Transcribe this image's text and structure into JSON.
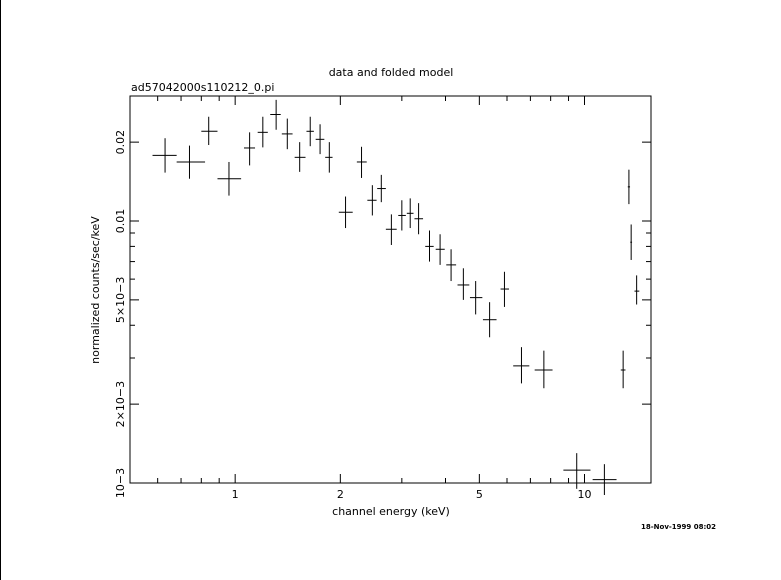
{
  "chart_data": {
    "type": "scatter",
    "title": "data and folded model",
    "subtitle": "ad57042000s110212_0.pi",
    "xlabel": "channel energy (keV)",
    "ylabel": "normalized counts/sec/keV",
    "x_scale": "log",
    "y_scale": "log",
    "xlim": [
      0.5,
      15.5
    ],
    "ylim": [
      0.001,
      0.03
    ],
    "x_ticks": [
      1,
      2,
      5,
      10
    ],
    "x_tick_labels": [
      "1",
      "2",
      "5",
      "10"
    ],
    "y_ticks": [
      0.001,
      0.002,
      0.005,
      0.01,
      0.02
    ],
    "y_tick_labels": [
      "10−3",
      "2×10−3",
      "5×10−3",
      "0.01",
      "0.02"
    ],
    "timestamp": "18-Nov-1999 08:02",
    "series": [
      {
        "points": [
          {
            "x": 0.63,
            "xerr": [
              0.58,
              0.68
            ],
            "y": 0.0178,
            "yerr": [
              0.0153,
              0.0207
            ]
          },
          {
            "x": 0.74,
            "xerr": [
              0.68,
              0.82
            ],
            "y": 0.0168,
            "yerr": [
              0.0145,
              0.0194
            ]
          },
          {
            "x": 0.84,
            "xerr": [
              0.8,
              0.89
            ],
            "y": 0.022,
            "yerr": [
              0.0195,
              0.025
            ]
          },
          {
            "x": 0.96,
            "xerr": [
              0.89,
              1.04
            ],
            "y": 0.0145,
            "yerr": [
              0.0125,
              0.0168
            ]
          },
          {
            "x": 1.1,
            "xerr": [
              1.06,
              1.14
            ],
            "y": 0.019,
            "yerr": [
              0.0163,
              0.0218
            ]
          },
          {
            "x": 1.2,
            "xerr": [
              1.16,
              1.24
            ],
            "y": 0.0218,
            "yerr": [
              0.0191,
              0.025
            ]
          },
          {
            "x": 1.31,
            "xerr": [
              1.26,
              1.35
            ],
            "y": 0.0255,
            "yerr": [
              0.0223,
              0.029
            ]
          },
          {
            "x": 1.41,
            "xerr": [
              1.36,
              1.46
            ],
            "y": 0.0215,
            "yerr": [
              0.0188,
              0.0246
            ]
          },
          {
            "x": 1.53,
            "xerr": [
              1.48,
              1.59
            ],
            "y": 0.0175,
            "yerr": [
              0.0154,
              0.02
            ]
          },
          {
            "x": 1.64,
            "xerr": [
              1.6,
              1.68
            ],
            "y": 0.022,
            "yerr": [
              0.0193,
              0.025
            ]
          },
          {
            "x": 1.75,
            "xerr": [
              1.7,
              1.8
            ],
            "y": 0.0205,
            "yerr": [
              0.018,
              0.0234
            ]
          },
          {
            "x": 1.86,
            "xerr": [
              1.81,
              1.9
            ],
            "y": 0.0175,
            "yerr": [
              0.0153,
              0.02
            ]
          },
          {
            "x": 2.07,
            "xerr": [
              1.98,
              2.17
            ],
            "y": 0.0108,
            "yerr": [
              0.0094,
              0.0124
            ]
          },
          {
            "x": 2.3,
            "xerr": [
              2.23,
              2.38
            ],
            "y": 0.0168,
            "yerr": [
              0.0146,
              0.0192
            ]
          },
          {
            "x": 2.47,
            "xerr": [
              2.39,
              2.54
            ],
            "y": 0.012,
            "yerr": [
              0.0105,
              0.0137
            ]
          },
          {
            "x": 2.62,
            "xerr": [
              2.55,
              2.7
            ],
            "y": 0.0133,
            "yerr": [
              0.0118,
              0.015
            ]
          },
          {
            "x": 2.8,
            "xerr": [
              2.7,
              2.9
            ],
            "y": 0.0093,
            "yerr": [
              0.0081,
              0.0106
            ]
          },
          {
            "x": 3.0,
            "xerr": [
              2.93,
              3.08
            ],
            "y": 0.0105,
            "yerr": [
              0.0092,
              0.012
            ]
          },
          {
            "x": 3.17,
            "xerr": [
              3.1,
              3.24
            ],
            "y": 0.0107,
            "yerr": [
              0.0094,
              0.0122
            ]
          },
          {
            "x": 3.35,
            "xerr": [
              3.26,
              3.45
            ],
            "y": 0.0102,
            "yerr": [
              0.0089,
              0.0117
            ]
          },
          {
            "x": 3.6,
            "xerr": [
              3.5,
              3.7
            ],
            "y": 0.008,
            "yerr": [
              0.007,
              0.0092
            ]
          },
          {
            "x": 3.86,
            "xerr": [
              3.75,
              3.98
            ],
            "y": 0.0078,
            "yerr": [
              0.0068,
              0.0089
            ]
          },
          {
            "x": 4.15,
            "xerr": [
              4.02,
              4.29
            ],
            "y": 0.0068,
            "yerr": [
              0.0059,
              0.0078
            ]
          },
          {
            "x": 4.5,
            "xerr": [
              4.33,
              4.68
            ],
            "y": 0.0057,
            "yerr": [
              0.005,
              0.0066
            ]
          },
          {
            "x": 4.88,
            "xerr": [
              4.7,
              5.1
            ],
            "y": 0.0051,
            "yerr": [
              0.0044,
              0.0059
            ]
          },
          {
            "x": 5.35,
            "xerr": [
              5.12,
              5.6
            ],
            "y": 0.0042,
            "yerr": [
              0.0036,
              0.0049
            ]
          },
          {
            "x": 5.9,
            "xerr": [
              5.75,
              6.08
            ],
            "y": 0.0055,
            "yerr": [
              0.0047,
              0.0064
            ]
          },
          {
            "x": 6.6,
            "xerr": [
              6.25,
              6.95
            ],
            "y": 0.0028,
            "yerr": [
              0.0024,
              0.0033
            ]
          },
          {
            "x": 7.65,
            "xerr": [
              7.2,
              8.1
            ],
            "y": 0.0027,
            "yerr": [
              0.0023,
              0.0032
            ]
          },
          {
            "x": 9.5,
            "xerr": [
              8.7,
              10.4
            ],
            "y": 0.00112,
            "yerr": [
              0.00095,
              0.0013
            ]
          },
          {
            "x": 11.4,
            "xerr": [
              10.55,
              12.35
            ],
            "y": 0.00103,
            "yerr": [
              0.0009,
              0.00118
            ]
          },
          {
            "x": 12.9,
            "xerr": [
              12.7,
              13.1
            ],
            "y": 0.0027,
            "yerr": [
              0.0023,
              0.0032
            ]
          },
          {
            "x": 13.4,
            "xerr": [
              13.3,
              13.5
            ],
            "y": 0.0135,
            "yerr": [
              0.0116,
              0.0157
            ]
          },
          {
            "x": 13.6,
            "xerr": [
              13.52,
              13.68
            ],
            "y": 0.0083,
            "yerr": [
              0.0071,
              0.0097
            ]
          },
          {
            "x": 14.1,
            "xerr": [
              13.9,
              14.35
            ],
            "y": 0.0054,
            "yerr": [
              0.0048,
              0.0062
            ]
          }
        ]
      }
    ]
  }
}
